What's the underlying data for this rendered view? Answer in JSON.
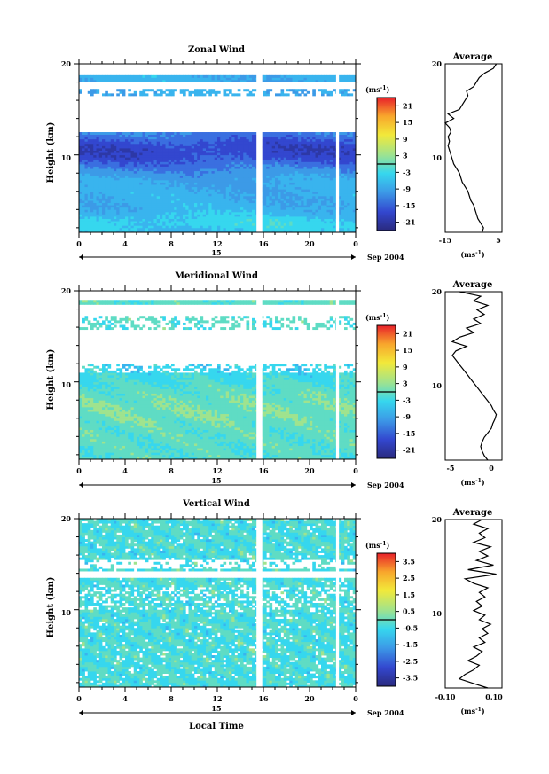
{
  "chart_data": [
    {
      "type": "heatmap",
      "title": "Zonal Wind",
      "ylabel": "Height (km)",
      "y_ticks": [
        "20",
        "10"
      ],
      "x_ticks": [
        "0",
        "4",
        "8",
        "12",
        "16",
        "20",
        "0"
      ],
      "date_label": "15",
      "month_label": "Sep 2004",
      "xlim": [
        0,
        24
      ],
      "ylim": [
        1.5,
        20
      ],
      "colorbar": {
        "unit": "(ms",
        "unit_exp": "-1",
        "unit_close": ")",
        "ticks": [
          "21",
          "15",
          "9",
          "3",
          "-3",
          "-9",
          "-15",
          "-21"
        ],
        "range": [
          -24,
          24
        ]
      },
      "profile": {
        "title": "Average",
        "unit": "(ms",
        "unit_exp": "-1",
        "unit_close": ")",
        "x_ticks": [
          "-15",
          "5"
        ],
        "y_ticks": [
          "20",
          "10"
        ],
        "xlim": [
          -15,
          5
        ],
        "points": [
          [
            -2,
            1.5
          ],
          [
            -1.5,
            2
          ],
          [
            -2.5,
            2.5
          ],
          [
            -3.5,
            3
          ],
          [
            -4,
            3.5
          ],
          [
            -4.5,
            4
          ],
          [
            -5,
            4.5
          ],
          [
            -6,
            5
          ],
          [
            -6.5,
            5.5
          ],
          [
            -7,
            6
          ],
          [
            -8,
            6.5
          ],
          [
            -9,
            7
          ],
          [
            -9.5,
            7.5
          ],
          [
            -10,
            8
          ],
          [
            -11,
            8.5
          ],
          [
            -12,
            9
          ],
          [
            -12.5,
            9.5
          ],
          [
            -13,
            10
          ],
          [
            -13.5,
            10.5
          ],
          [
            -14,
            11
          ],
          [
            -13.5,
            11.5
          ],
          [
            -14,
            12
          ],
          [
            -13,
            12.5
          ],
          [
            -13.5,
            13
          ],
          [
            -15,
            13.5
          ],
          [
            -12,
            14
          ],
          [
            -14,
            14.5
          ],
          [
            -10,
            15
          ],
          [
            -9,
            15.5
          ],
          [
            -8,
            16
          ],
          [
            -7,
            16.5
          ],
          [
            -7.5,
            17
          ],
          [
            -5,
            17.5
          ],
          [
            -4,
            18
          ],
          [
            -3,
            18.5
          ],
          [
            -1,
            19
          ],
          [
            2,
            19.5
          ],
          [
            3,
            20
          ]
        ]
      }
    },
    {
      "type": "heatmap",
      "title": "Meridional Wind",
      "ylabel": "Height (km)",
      "y_ticks": [
        "20",
        "10"
      ],
      "x_ticks": [
        "0",
        "4",
        "8",
        "12",
        "16",
        "20",
        "0"
      ],
      "date_label": "15",
      "month_label": "Sep 2004",
      "xlim": [
        0,
        24
      ],
      "ylim": [
        1.5,
        20
      ],
      "colorbar": {
        "unit": "(ms",
        "unit_exp": "-1",
        "unit_close": ")",
        "ticks": [
          "21",
          "15",
          "9",
          "3",
          "-3",
          "-9",
          "-15",
          "-21"
        ],
        "range": [
          -24,
          24
        ]
      },
      "profile": {
        "title": "Average",
        "unit": "(ms",
        "unit_exp": "-1",
        "unit_close": ")",
        "x_ticks": [
          "-5",
          "0"
        ],
        "y_ticks": [
          "20",
          "10"
        ],
        "xlim": [
          -7,
          1
        ],
        "points": [
          [
            -1,
            1.5
          ],
          [
            -1.5,
            2
          ],
          [
            -1.8,
            2.5
          ],
          [
            -2,
            3
          ],
          [
            -1.8,
            3.5
          ],
          [
            -1.5,
            4
          ],
          [
            -1,
            4.5
          ],
          [
            -0.5,
            5
          ],
          [
            -0.3,
            5.5
          ],
          [
            0,
            6
          ],
          [
            0.2,
            6.5
          ],
          [
            -0.2,
            7
          ],
          [
            -0.5,
            7.5
          ],
          [
            -1,
            8
          ],
          [
            -1.5,
            8.5
          ],
          [
            -2,
            9
          ],
          [
            -2.5,
            9.5
          ],
          [
            -3,
            10
          ],
          [
            -3.5,
            10.5
          ],
          [
            -4,
            11
          ],
          [
            -4.5,
            11.5
          ],
          [
            -5,
            12
          ],
          [
            -5.5,
            12.5
          ],
          [
            -6,
            13
          ],
          [
            -5.5,
            13.5
          ],
          [
            -4,
            14
          ],
          [
            -6,
            14.5
          ],
          [
            -5,
            15
          ],
          [
            -3,
            15.5
          ],
          [
            -4,
            16
          ],
          [
            -2,
            16.5
          ],
          [
            -3,
            17
          ],
          [
            -1.5,
            17.5
          ],
          [
            -2.5,
            18
          ],
          [
            -1,
            18.5
          ],
          [
            -3,
            19
          ],
          [
            -2,
            19.5
          ],
          [
            -5,
            20
          ]
        ]
      }
    },
    {
      "type": "heatmap",
      "title": "Vertical Wind",
      "ylabel": "Height (km)",
      "xlabel": "Local Time",
      "y_ticks": [
        "20",
        "10"
      ],
      "x_ticks": [
        "0",
        "4",
        "8",
        "12",
        "16",
        "20",
        "0"
      ],
      "date_label": "15",
      "month_label": "Sep 2004",
      "xlim": [
        0,
        24
      ],
      "ylim": [
        1.5,
        20
      ],
      "colorbar": {
        "unit": "(ms",
        "unit_exp": "-1",
        "unit_close": ")",
        "ticks": [
          "3.5",
          "2.5",
          "1.5",
          "0.5",
          "-0.5",
          "-1.5",
          "-2.5",
          "-3.5"
        ],
        "range": [
          -4,
          4
        ]
      },
      "profile": {
        "title": "Average",
        "unit": "(ms",
        "unit_exp": "-1",
        "unit_close": ")",
        "x_ticks": [
          "-0.10",
          "0.10"
        ],
        "y_ticks": [
          "20",
          "10"
        ],
        "xlim": [
          -0.1,
          0.1
        ],
        "points": [
          [
            0.05,
            1.5
          ],
          [
            0.0,
            2
          ],
          [
            -0.05,
            2.5
          ],
          [
            -0.03,
            3
          ],
          [
            0.0,
            3.5
          ],
          [
            0.02,
            4
          ],
          [
            -0.02,
            4.5
          ],
          [
            0.01,
            5
          ],
          [
            0.03,
            5.5
          ],
          [
            0.0,
            6
          ],
          [
            0.04,
            6.5
          ],
          [
            0.02,
            7
          ],
          [
            0.05,
            7.5
          ],
          [
            0.03,
            8
          ],
          [
            0.06,
            8.5
          ],
          [
            0.02,
            9
          ],
          [
            0.04,
            9.5
          ],
          [
            0.0,
            10
          ],
          [
            0.03,
            10.5
          ],
          [
            0.01,
            11
          ],
          [
            0.04,
            11.5
          ],
          [
            0.02,
            12
          ],
          [
            0.05,
            12.5
          ],
          [
            0.0,
            13
          ],
          [
            -0.03,
            13.5
          ],
          [
            0.08,
            14
          ],
          [
            -0.02,
            14.5
          ],
          [
            0.07,
            15
          ],
          [
            0.01,
            15.5
          ],
          [
            0.05,
            16
          ],
          [
            0.02,
            16.5
          ],
          [
            0.06,
            17
          ],
          [
            0.0,
            17.5
          ],
          [
            0.04,
            18
          ],
          [
            0.02,
            18.5
          ],
          [
            0.05,
            19
          ],
          [
            0.0,
            19.5
          ],
          [
            0.03,
            20
          ]
        ]
      }
    }
  ]
}
